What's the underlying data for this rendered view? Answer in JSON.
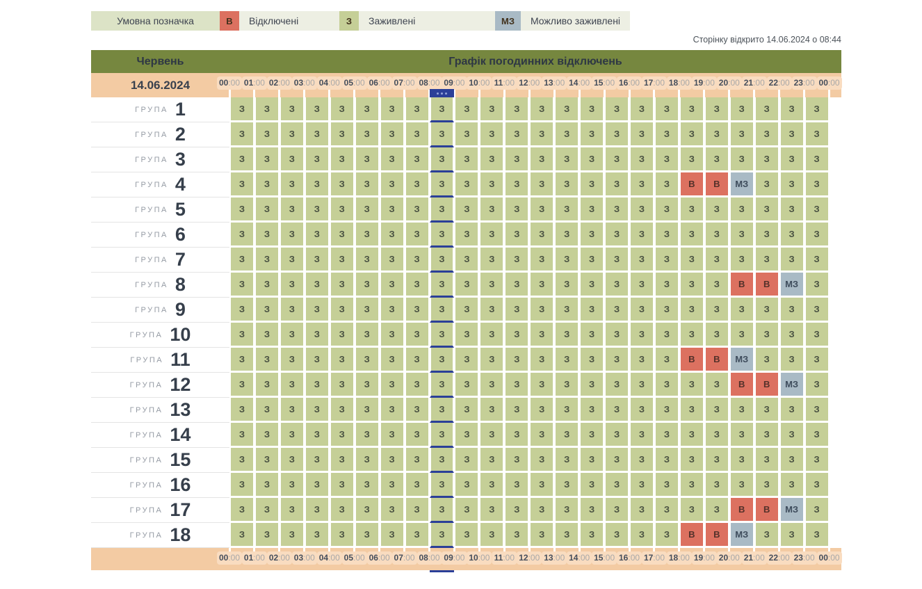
{
  "legend": {
    "title": "Умовна позначка",
    "items": [
      {
        "code": "В",
        "label": "Відключені",
        "state": "off",
        "color": "#dc7160"
      },
      {
        "code": "З",
        "label": "Заживлені",
        "state": "on",
        "color": "#c5cf97"
      },
      {
        "code": "МЗ",
        "label": "Можливо заживлені",
        "state": "maybe",
        "color": "#a9bac5"
      }
    ]
  },
  "page_opened_text": "Сторінку відкрито 14.06.2024 о 08:44",
  "colors": {
    "header_olive": "#76873f",
    "strip_peach": "#f3cba3",
    "pill_peach": "#f9dcc0",
    "on_green": "#c5cf97",
    "off_red": "#dc7160",
    "maybe_gray": "#a9bac5",
    "current_marker_blue": "#2b3f98",
    "legend_title_bg": "#dce3c6",
    "legend_bar_bg": "#edefe3"
  },
  "table": {
    "month_label": "Червень",
    "title": "Графік погодинних відключень",
    "date": "14.06.2024",
    "group_word": "ГРУПА",
    "hours": [
      "00:00",
      "01:00",
      "02:00",
      "03:00",
      "04:00",
      "05:00",
      "06:00",
      "07:00",
      "08:00",
      "09:00",
      "10:00",
      "11:00",
      "12:00",
      "13:00",
      "14:00",
      "15:00",
      "16:00",
      "17:00",
      "18:00",
      "19:00",
      "20:00",
      "21:00",
      "22:00",
      "23:00",
      "00:00"
    ],
    "current_hour_index": 8,
    "rows": [
      {
        "group": "1",
        "cells": [
          "З",
          "З",
          "З",
          "З",
          "З",
          "З",
          "З",
          "З",
          "З",
          "З",
          "З",
          "З",
          "З",
          "З",
          "З",
          "З",
          "З",
          "З",
          "З",
          "З",
          "З",
          "З",
          "З",
          "З"
        ]
      },
      {
        "group": "2",
        "cells": [
          "З",
          "З",
          "З",
          "З",
          "З",
          "З",
          "З",
          "З",
          "З",
          "З",
          "З",
          "З",
          "З",
          "З",
          "З",
          "З",
          "З",
          "З",
          "З",
          "З",
          "З",
          "З",
          "З",
          "З"
        ]
      },
      {
        "group": "3",
        "cells": [
          "З",
          "З",
          "З",
          "З",
          "З",
          "З",
          "З",
          "З",
          "З",
          "З",
          "З",
          "З",
          "З",
          "З",
          "З",
          "З",
          "З",
          "З",
          "З",
          "З",
          "З",
          "З",
          "З",
          "З"
        ]
      },
      {
        "group": "4",
        "cells": [
          "З",
          "З",
          "З",
          "З",
          "З",
          "З",
          "З",
          "З",
          "З",
          "З",
          "З",
          "З",
          "З",
          "З",
          "З",
          "З",
          "З",
          "З",
          "В",
          "В",
          "МЗ",
          "З",
          "З",
          "З"
        ]
      },
      {
        "group": "5",
        "cells": [
          "З",
          "З",
          "З",
          "З",
          "З",
          "З",
          "З",
          "З",
          "З",
          "З",
          "З",
          "З",
          "З",
          "З",
          "З",
          "З",
          "З",
          "З",
          "З",
          "З",
          "З",
          "З",
          "З",
          "З"
        ]
      },
      {
        "group": "6",
        "cells": [
          "З",
          "З",
          "З",
          "З",
          "З",
          "З",
          "З",
          "З",
          "З",
          "З",
          "З",
          "З",
          "З",
          "З",
          "З",
          "З",
          "З",
          "З",
          "З",
          "З",
          "З",
          "З",
          "З",
          "З"
        ]
      },
      {
        "group": "7",
        "cells": [
          "З",
          "З",
          "З",
          "З",
          "З",
          "З",
          "З",
          "З",
          "З",
          "З",
          "З",
          "З",
          "З",
          "З",
          "З",
          "З",
          "З",
          "З",
          "З",
          "З",
          "З",
          "З",
          "З",
          "З"
        ]
      },
      {
        "group": "8",
        "cells": [
          "З",
          "З",
          "З",
          "З",
          "З",
          "З",
          "З",
          "З",
          "З",
          "З",
          "З",
          "З",
          "З",
          "З",
          "З",
          "З",
          "З",
          "З",
          "З",
          "З",
          "В",
          "В",
          "МЗ",
          "З"
        ]
      },
      {
        "group": "9",
        "cells": [
          "З",
          "З",
          "З",
          "З",
          "З",
          "З",
          "З",
          "З",
          "З",
          "З",
          "З",
          "З",
          "З",
          "З",
          "З",
          "З",
          "З",
          "З",
          "З",
          "З",
          "З",
          "З",
          "З",
          "З"
        ]
      },
      {
        "group": "10",
        "cells": [
          "З",
          "З",
          "З",
          "З",
          "З",
          "З",
          "З",
          "З",
          "З",
          "З",
          "З",
          "З",
          "З",
          "З",
          "З",
          "З",
          "З",
          "З",
          "З",
          "З",
          "З",
          "З",
          "З",
          "З"
        ]
      },
      {
        "group": "11",
        "cells": [
          "З",
          "З",
          "З",
          "З",
          "З",
          "З",
          "З",
          "З",
          "З",
          "З",
          "З",
          "З",
          "З",
          "З",
          "З",
          "З",
          "З",
          "З",
          "В",
          "В",
          "МЗ",
          "З",
          "З",
          "З"
        ]
      },
      {
        "group": "12",
        "cells": [
          "З",
          "З",
          "З",
          "З",
          "З",
          "З",
          "З",
          "З",
          "З",
          "З",
          "З",
          "З",
          "З",
          "З",
          "З",
          "З",
          "З",
          "З",
          "З",
          "З",
          "В",
          "В",
          "МЗ",
          "З"
        ]
      },
      {
        "group": "13",
        "cells": [
          "З",
          "З",
          "З",
          "З",
          "З",
          "З",
          "З",
          "З",
          "З",
          "З",
          "З",
          "З",
          "З",
          "З",
          "З",
          "З",
          "З",
          "З",
          "З",
          "З",
          "З",
          "З",
          "З",
          "З"
        ]
      },
      {
        "group": "14",
        "cells": [
          "З",
          "З",
          "З",
          "З",
          "З",
          "З",
          "З",
          "З",
          "З",
          "З",
          "З",
          "З",
          "З",
          "З",
          "З",
          "З",
          "З",
          "З",
          "З",
          "З",
          "З",
          "З",
          "З",
          "З"
        ]
      },
      {
        "group": "15",
        "cells": [
          "З",
          "З",
          "З",
          "З",
          "З",
          "З",
          "З",
          "З",
          "З",
          "З",
          "З",
          "З",
          "З",
          "З",
          "З",
          "З",
          "З",
          "З",
          "З",
          "З",
          "З",
          "З",
          "З",
          "З"
        ]
      },
      {
        "group": "16",
        "cells": [
          "З",
          "З",
          "З",
          "З",
          "З",
          "З",
          "З",
          "З",
          "З",
          "З",
          "З",
          "З",
          "З",
          "З",
          "З",
          "З",
          "З",
          "З",
          "З",
          "З",
          "З",
          "З",
          "З",
          "З"
        ]
      },
      {
        "group": "17",
        "cells": [
          "З",
          "З",
          "З",
          "З",
          "З",
          "З",
          "З",
          "З",
          "З",
          "З",
          "З",
          "З",
          "З",
          "З",
          "З",
          "З",
          "З",
          "З",
          "З",
          "З",
          "В",
          "В",
          "МЗ",
          "З"
        ]
      },
      {
        "group": "18",
        "cells": [
          "З",
          "З",
          "З",
          "З",
          "З",
          "З",
          "З",
          "З",
          "З",
          "З",
          "З",
          "З",
          "З",
          "З",
          "З",
          "З",
          "З",
          "З",
          "В",
          "В",
          "МЗ",
          "З",
          "З",
          "З"
        ]
      }
    ]
  }
}
